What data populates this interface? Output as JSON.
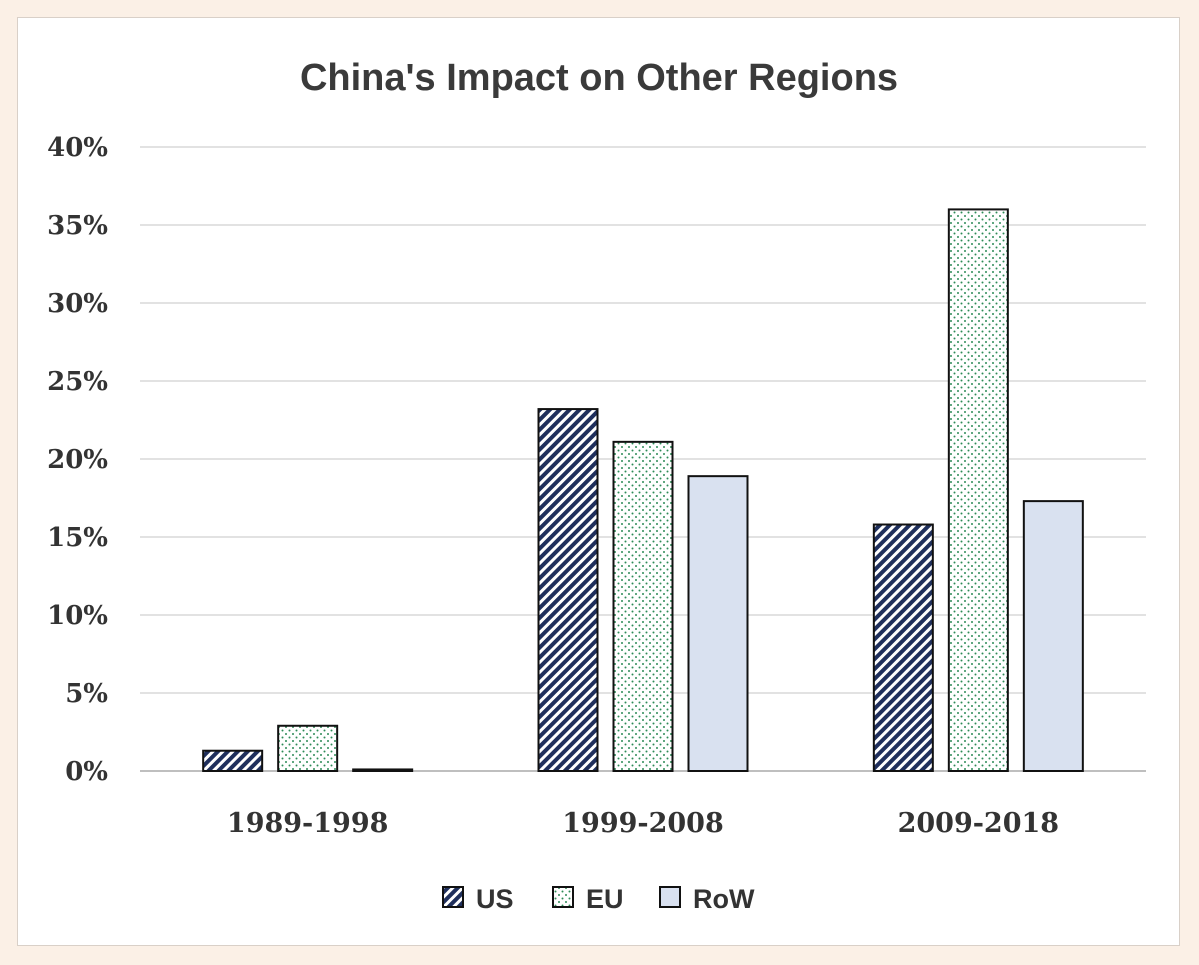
{
  "chart_data": {
    "type": "bar",
    "title": "China's Impact on Other Regions",
    "categories": [
      "1989-1998",
      "1999-2008",
      "2009-2018"
    ],
    "series": [
      {
        "name": "US",
        "values": [
          0.013,
          0.232,
          0.158
        ],
        "color": "#1f2f5c",
        "pattern": "diagonal-stripes"
      },
      {
        "name": "EU",
        "values": [
          0.029,
          0.211,
          0.36
        ],
        "color": "#2e8b57",
        "pattern": "dots"
      },
      {
        "name": "RoW",
        "values": [
          0.001,
          0.189,
          0.173
        ],
        "color": "#d9e1f0",
        "pattern": "solid"
      }
    ],
    "ylim": [
      0,
      0.4
    ],
    "yticks": [
      0,
      0.05,
      0.1,
      0.15,
      0.2,
      0.25,
      0.3,
      0.35,
      0.4
    ],
    "ytick_labels": [
      "0%",
      "5%",
      "10%",
      "15%",
      "20%",
      "25%",
      "30%",
      "35%",
      "40%"
    ],
    "xlabel": "",
    "ylabel": "",
    "grid": true,
    "legend_position": "bottom"
  }
}
